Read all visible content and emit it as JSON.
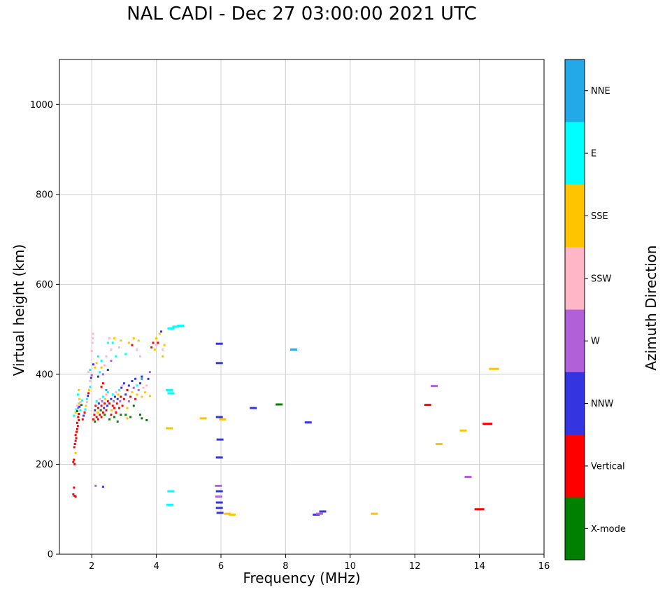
{
  "chart_data": {
    "type": "scatter",
    "title": "NAL CADI - Dec 27 03:00:00 2021 UTC",
    "xlabel": "Frequency (MHz)",
    "ylabel": "Virtual height (km)",
    "colorbar_label": "Azimuth Direction",
    "xlim": [
      1,
      16
    ],
    "ylim": [
      0,
      1100
    ],
    "xticks": [
      2,
      4,
      6,
      8,
      10,
      12,
      14,
      16
    ],
    "yticks": [
      0,
      200,
      400,
      600,
      800,
      1000
    ],
    "grid": true,
    "legend_position": "right-colorbar",
    "directions": [
      {
        "key": "NNE",
        "label": "NNE",
        "color": "#23A8E8"
      },
      {
        "key": "E",
        "label": "E",
        "color": "#00FFFF"
      },
      {
        "key": "SSE",
        "label": "SSE",
        "color": "#FFC400"
      },
      {
        "key": "SSW",
        "label": "SSW",
        "color": "#FFB6C6"
      },
      {
        "key": "W",
        "label": "W",
        "color": "#B160D8"
      },
      {
        "key": "NNW",
        "label": "NNW",
        "color": "#3434E0"
      },
      {
        "key": "Vertical",
        "label": "Vertical",
        "color": "#FF0000"
      },
      {
        "key": "X-mode",
        "label": "X-mode",
        "color": "#008000"
      }
    ],
    "points": [
      [
        1.43,
        133,
        "Vertical"
      ],
      [
        1.47,
        130,
        "Vertical"
      ],
      [
        1.45,
        148,
        "Vertical"
      ],
      [
        1.5,
        128,
        "Vertical"
      ],
      [
        1.43,
        205,
        "Vertical"
      ],
      [
        1.45,
        210,
        "Vertical"
      ],
      [
        1.47,
        200,
        "Vertical"
      ],
      [
        1.5,
        225,
        "SSE"
      ],
      [
        1.46,
        238,
        "Vertical"
      ],
      [
        1.48,
        245,
        "Vertical"
      ],
      [
        1.5,
        252,
        "Vertical"
      ],
      [
        1.52,
        258,
        "Vertical"
      ],
      [
        1.5,
        265,
        "Vertical"
      ],
      [
        1.53,
        272,
        "Vertical"
      ],
      [
        1.55,
        278,
        "Vertical"
      ],
      [
        1.57,
        285,
        "Vertical"
      ],
      [
        1.55,
        292,
        "Vertical"
      ],
      [
        1.6,
        298,
        "Vertical"
      ],
      [
        1.58,
        305,
        "Vertical"
      ],
      [
        1.45,
        308,
        "E"
      ],
      [
        1.5,
        315,
        "SSE"
      ],
      [
        1.52,
        322,
        "E"
      ],
      [
        1.55,
        318,
        "X-mode"
      ],
      [
        1.55,
        330,
        "SSW"
      ],
      [
        1.58,
        325,
        "W"
      ],
      [
        1.6,
        312,
        "Vertical"
      ],
      [
        1.6,
        335,
        "SSE"
      ],
      [
        1.62,
        328,
        "NNW"
      ],
      [
        1.65,
        320,
        "E"
      ],
      [
        1.65,
        338,
        "SSW"
      ],
      [
        1.68,
        332,
        "X-mode"
      ],
      [
        1.7,
        342,
        "E"
      ],
      [
        1.62,
        345,
        "SSE"
      ],
      [
        1.57,
        355,
        "E"
      ],
      [
        1.6,
        365,
        "SSE"
      ],
      [
        1.72,
        300,
        "Vertical"
      ],
      [
        1.75,
        308,
        "NNW"
      ],
      [
        1.78,
        315,
        "Vertical"
      ],
      [
        1.8,
        322,
        "E"
      ],
      [
        1.82,
        330,
        "SSE"
      ],
      [
        1.85,
        338,
        "SSW"
      ],
      [
        1.85,
        345,
        "E"
      ],
      [
        1.88,
        352,
        "NNW"
      ],
      [
        1.9,
        358,
        "Vertical"
      ],
      [
        1.92,
        365,
        "SSE"
      ],
      [
        1.95,
        372,
        "E"
      ],
      [
        1.95,
        385,
        "SSW"
      ],
      [
        1.98,
        392,
        "NNW"
      ],
      [
        2.0,
        398,
        "W"
      ],
      [
        1.9,
        405,
        "SSW"
      ],
      [
        1.95,
        410,
        "E"
      ],
      [
        2.02,
        470,
        "SSW"
      ],
      [
        2.03,
        480,
        "SSW"
      ],
      [
        2.04,
        490,
        "SSW"
      ],
      [
        2.1,
        415,
        "SSE"
      ],
      [
        2.05,
        422,
        "NNW"
      ],
      [
        2.0,
        452,
        "SSW"
      ],
      [
        2.12,
        152,
        "W"
      ],
      [
        2.35,
        150,
        "NNW"
      ],
      [
        2.05,
        300,
        "Vertical"
      ],
      [
        2.08,
        310,
        "Vertical"
      ],
      [
        2.1,
        295,
        "X-mode"
      ],
      [
        2.1,
        320,
        "NNW"
      ],
      [
        2.12,
        330,
        "Vertical"
      ],
      [
        2.15,
        305,
        "Vertical"
      ],
      [
        2.15,
        340,
        "E"
      ],
      [
        2.18,
        315,
        "SSE"
      ],
      [
        2.2,
        300,
        "Vertical"
      ],
      [
        2.2,
        325,
        "Vertical"
      ],
      [
        2.22,
        335,
        "NNW"
      ],
      [
        2.25,
        310,
        "Vertical"
      ],
      [
        2.25,
        345,
        "SSW"
      ],
      [
        2.28,
        320,
        "X-mode"
      ],
      [
        2.3,
        305,
        "Vertical"
      ],
      [
        2.3,
        330,
        "Vertical"
      ],
      [
        2.32,
        340,
        "W"
      ],
      [
        2.35,
        315,
        "Vertical"
      ],
      [
        2.35,
        350,
        "E"
      ],
      [
        2.38,
        325,
        "NNW"
      ],
      [
        2.4,
        310,
        "X-mode"
      ],
      [
        2.4,
        335,
        "Vertical"
      ],
      [
        2.42,
        345,
        "SSE"
      ],
      [
        2.45,
        320,
        "Vertical"
      ],
      [
        2.45,
        355,
        "SSW"
      ],
      [
        2.48,
        330,
        "NNW"
      ],
      [
        2.5,
        340,
        "Vertical"
      ],
      [
        2.5,
        360,
        "E"
      ],
      [
        2.3,
        372,
        "Vertical"
      ],
      [
        2.35,
        380,
        "Vertical"
      ],
      [
        2.2,
        395,
        "NNW"
      ],
      [
        2.25,
        405,
        "E"
      ],
      [
        2.3,
        415,
        "SSE"
      ],
      [
        2.35,
        400,
        "W"
      ],
      [
        2.4,
        420,
        "SSW"
      ],
      [
        2.3,
        430,
        "E"
      ],
      [
        2.45,
        440,
        "SSW"
      ],
      [
        2.5,
        410,
        "NNW"
      ],
      [
        2.15,
        425,
        "SSE"
      ],
      [
        2.2,
        440,
        "E"
      ],
      [
        2.5,
        470,
        "E"
      ],
      [
        2.55,
        480,
        "SSW"
      ],
      [
        2.45,
        365,
        "NNE"
      ],
      [
        2.55,
        300,
        "X-mode"
      ],
      [
        2.55,
        335,
        "Vertical"
      ],
      [
        2.6,
        310,
        "Vertical"
      ],
      [
        2.6,
        345,
        "NNW"
      ],
      [
        2.62,
        320,
        "SSE"
      ],
      [
        2.65,
        330,
        "Vertical"
      ],
      [
        2.65,
        355,
        "E"
      ],
      [
        2.68,
        340,
        "W"
      ],
      [
        2.7,
        305,
        "X-mode"
      ],
      [
        2.7,
        325,
        "Vertical"
      ],
      [
        2.72,
        350,
        "NNW"
      ],
      [
        2.75,
        315,
        "Vertical"
      ],
      [
        2.75,
        360,
        "SSW"
      ],
      [
        2.78,
        335,
        "Vertical"
      ],
      [
        2.8,
        295,
        "X-mode"
      ],
      [
        2.8,
        345,
        "NNW"
      ],
      [
        2.82,
        355,
        "SSE"
      ],
      [
        2.85,
        325,
        "Vertical"
      ],
      [
        2.85,
        365,
        "E"
      ],
      [
        2.88,
        340,
        "W"
      ],
      [
        2.9,
        310,
        "X-mode"
      ],
      [
        2.9,
        350,
        "Vertical"
      ],
      [
        2.92,
        370,
        "NNW"
      ],
      [
        2.95,
        330,
        "Vertical"
      ],
      [
        2.95,
        375,
        "SSW"
      ],
      [
        3.0,
        345,
        "Vertical"
      ],
      [
        3.0,
        380,
        "NNW"
      ],
      [
        2.6,
        455,
        "SSW"
      ],
      [
        2.65,
        470,
        "E"
      ],
      [
        2.7,
        480,
        "SSE"
      ],
      [
        2.75,
        440,
        "E"
      ],
      [
        2.85,
        460,
        "SSW"
      ],
      [
        2.9,
        475,
        "SSE"
      ],
      [
        2.6,
        430,
        "W"
      ],
      [
        3.05,
        310,
        "X-mode"
      ],
      [
        3.05,
        355,
        "NNW"
      ],
      [
        3.1,
        325,
        "SSE"
      ],
      [
        3.1,
        365,
        "Vertical"
      ],
      [
        3.15,
        340,
        "W"
      ],
      [
        3.15,
        375,
        "NNW"
      ],
      [
        3.2,
        305,
        "X-mode"
      ],
      [
        3.2,
        350,
        "Vertical"
      ],
      [
        3.25,
        360,
        "SSE"
      ],
      [
        3.25,
        385,
        "NNW"
      ],
      [
        3.3,
        330,
        "X-mode"
      ],
      [
        3.3,
        370,
        "W"
      ],
      [
        3.35,
        345,
        "Vertical"
      ],
      [
        3.35,
        390,
        "NNW"
      ],
      [
        3.4,
        355,
        "SSE"
      ],
      [
        3.4,
        375,
        "E"
      ],
      [
        3.45,
        365,
        "W"
      ],
      [
        3.5,
        310,
        "X-mode"
      ],
      [
        3.5,
        380,
        "NNW"
      ],
      [
        3.55,
        350,
        "SSE"
      ],
      [
        3.55,
        395,
        "NNW"
      ],
      [
        3.6,
        370,
        "SSW"
      ],
      [
        3.55,
        390,
        "NNE"
      ],
      [
        3.1,
        302,
        "SSE"
      ],
      [
        3.05,
        445,
        "E"
      ],
      [
        3.15,
        470,
        "SSE"
      ],
      [
        3.25,
        465,
        "Vertical"
      ],
      [
        3.3,
        480,
        "SSE"
      ],
      [
        3.4,
        455,
        "SSW"
      ],
      [
        3.45,
        475,
        "SSE"
      ],
      [
        3.5,
        440,
        "SSW"
      ],
      [
        3.65,
        360,
        "SSE"
      ],
      [
        3.7,
        375,
        "SSW"
      ],
      [
        3.75,
        390,
        "NNW"
      ],
      [
        3.8,
        405,
        "W"
      ],
      [
        3.85,
        460,
        "Vertical"
      ],
      [
        3.9,
        470,
        "Vertical"
      ],
      [
        3.95,
        455,
        "SSE"
      ],
      [
        4.0,
        465,
        "SSW"
      ],
      [
        4.0,
        480,
        "SSE"
      ],
      [
        4.05,
        470,
        "Vertical"
      ],
      [
        4.1,
        490,
        "SSE"
      ],
      [
        4.15,
        495,
        "NNW"
      ],
      [
        4.2,
        440,
        "SSE"
      ],
      [
        4.2,
        455,
        "SSW"
      ],
      [
        4.25,
        465,
        "SSE"
      ],
      [
        3.55,
        302,
        "X-mode"
      ],
      [
        3.7,
        298,
        "X-mode"
      ],
      [
        3.8,
        352,
        "SSE"
      ],
      [
        4.45,
        502,
        "E",
        "d"
      ],
      [
        4.6,
        506,
        "E",
        "d"
      ],
      [
        4.75,
        508,
        "E",
        "d"
      ],
      [
        4.4,
        365,
        "E",
        "d"
      ],
      [
        4.45,
        358,
        "E",
        "d"
      ],
      [
        4.4,
        280,
        "SSE",
        "d"
      ],
      [
        4.45,
        140,
        "E",
        "d"
      ],
      [
        4.42,
        110,
        "E",
        "d"
      ],
      [
        5.45,
        302,
        "SSE",
        "d"
      ],
      [
        5.95,
        468,
        "NNW",
        "d"
      ],
      [
        5.95,
        425,
        "NNW",
        "d"
      ],
      [
        5.95,
        305,
        "NNW",
        "d"
      ],
      [
        6.05,
        300,
        "SSE",
        "d"
      ],
      [
        5.97,
        255,
        "NNW",
        "d"
      ],
      [
        5.95,
        215,
        "NNW",
        "d"
      ],
      [
        5.92,
        152,
        "W",
        "d"
      ],
      [
        5.95,
        140,
        "NNW",
        "d"
      ],
      [
        5.93,
        128,
        "W",
        "d"
      ],
      [
        5.95,
        115,
        "NNW",
        "d"
      ],
      [
        5.95,
        103,
        "NNW",
        "d"
      ],
      [
        5.97,
        92,
        "NNW",
        "d"
      ],
      [
        6.2,
        90,
        "SSE",
        "d"
      ],
      [
        6.35,
        88,
        "SSE",
        "d"
      ],
      [
        7.0,
        325,
        "NNW",
        "d"
      ],
      [
        7.8,
        333,
        "X-mode",
        "d"
      ],
      [
        8.25,
        455,
        "NNE",
        "d"
      ],
      [
        8.7,
        293,
        "NNW",
        "d"
      ],
      [
        8.95,
        88,
        "NNW",
        "d"
      ],
      [
        9.05,
        90,
        "W",
        "d"
      ],
      [
        9.15,
        95,
        "NNW",
        "d"
      ],
      [
        10.75,
        90,
        "SSE",
        "d"
      ],
      [
        12.4,
        332,
        "Vertical",
        "d"
      ],
      [
        12.6,
        374,
        "W",
        "d"
      ],
      [
        12.75,
        245,
        "SSE",
        "d"
      ],
      [
        13.5,
        275,
        "SSE",
        "d"
      ],
      [
        13.65,
        172,
        "W",
        "d"
      ],
      [
        14.0,
        100,
        "Vertical",
        "D"
      ],
      [
        14.25,
        290,
        "Vertical",
        "D"
      ],
      [
        14.45,
        412,
        "SSE",
        "D"
      ]
    ]
  }
}
